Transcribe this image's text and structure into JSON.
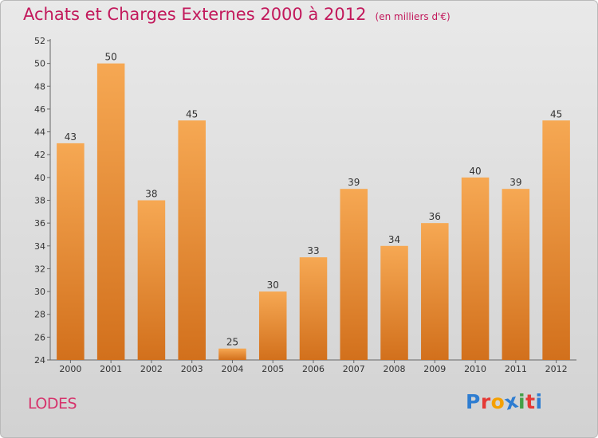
{
  "title": "Achats et Charges Externes 2000 à 2012",
  "subtitle": "(en milliers d'€)",
  "commune": "LODES",
  "logo": {
    "text": "Proxiti",
    "colors": [
      "#2e7dd1",
      "#e53935",
      "#f5a000",
      "#2e7dd1",
      "#43a047",
      "#e53935",
      "#2e7dd1"
    ]
  },
  "colors": {
    "bar_light": "#f6a853",
    "bar_dark": "#d2701c",
    "title": "#c2185b"
  },
  "chart_data": {
    "type": "bar",
    "categories": [
      "2000",
      "2001",
      "2002",
      "2003",
      "2004",
      "2005",
      "2006",
      "2007",
      "2008",
      "2009",
      "2010",
      "2011",
      "2012"
    ],
    "values": [
      43,
      50,
      38,
      45,
      25,
      30,
      33,
      39,
      34,
      36,
      40,
      39,
      45
    ],
    "ylim": [
      24,
      52
    ],
    "yticks": [
      24,
      26,
      28,
      30,
      32,
      34,
      36,
      38,
      40,
      42,
      44,
      46,
      48,
      50,
      52
    ],
    "grid": false
  }
}
